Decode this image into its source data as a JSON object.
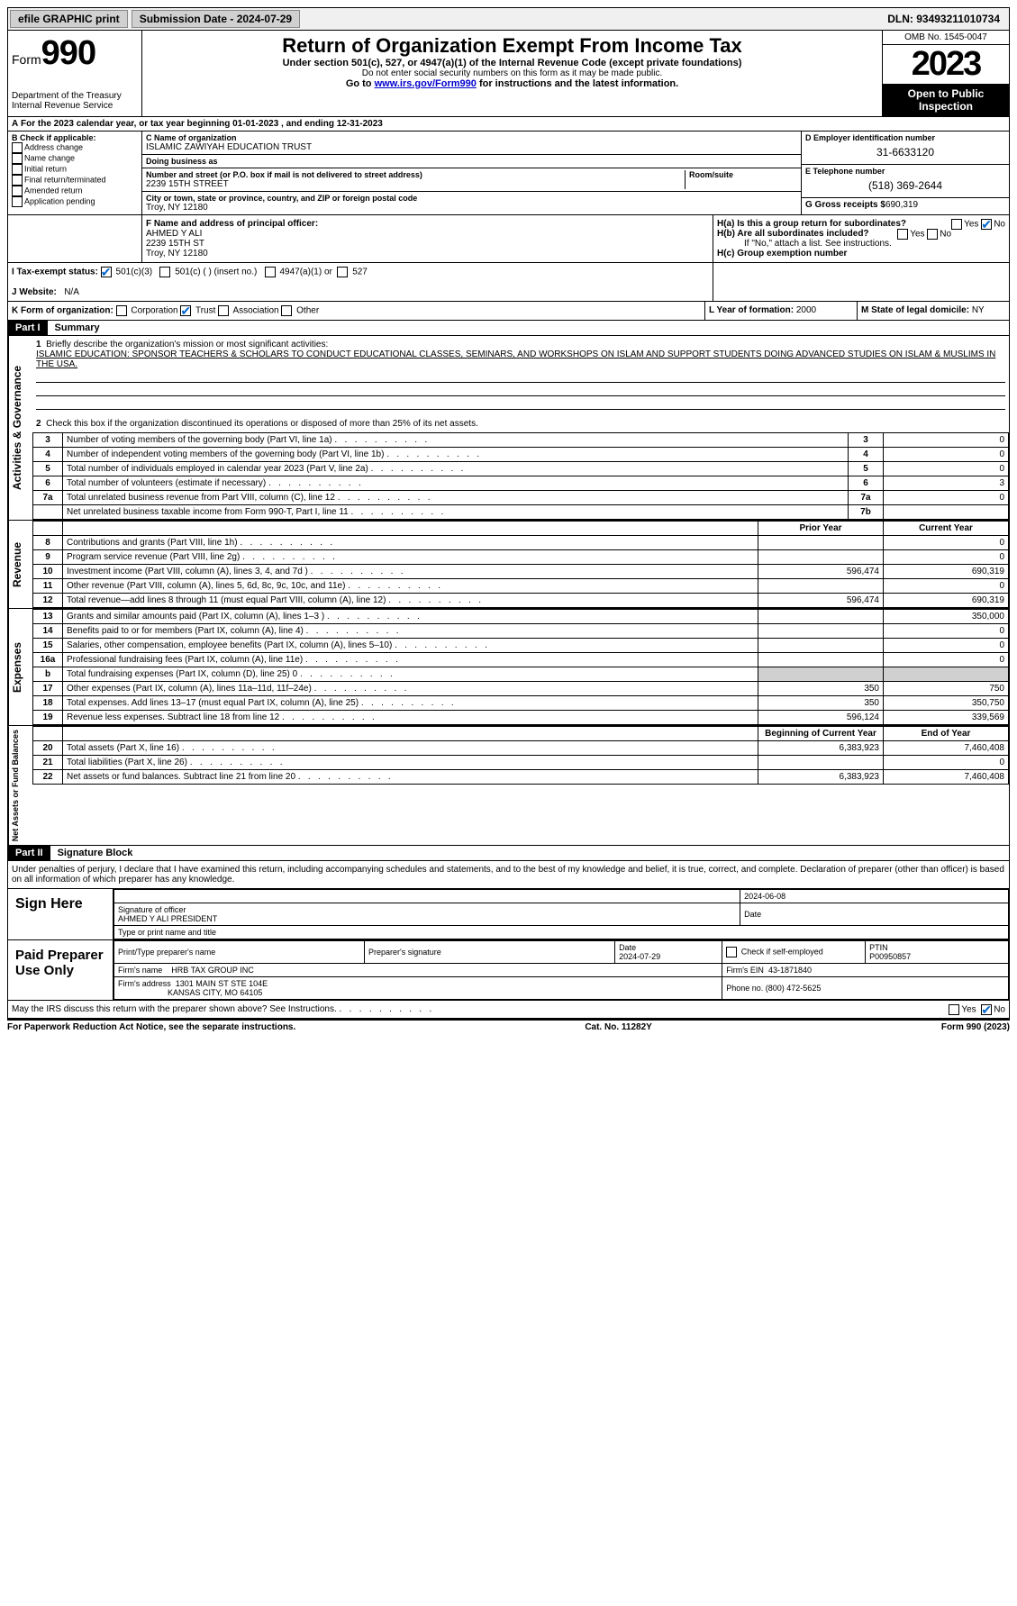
{
  "topbar": {
    "efile": "efile GRAPHIC print",
    "submission_label": "Submission Date - 2024-07-29",
    "dln": "DLN: 93493211010734"
  },
  "header": {
    "form_label": "Form",
    "form_number": "990",
    "dept": "Department of the Treasury Internal Revenue Service",
    "title": "Return of Organization Exempt From Income Tax",
    "subtitle": "Under section 501(c), 527, or 4947(a)(1) of the Internal Revenue Code (except private foundations)",
    "note1": "Do not enter social security numbers on this form as it may be made public.",
    "note2_pre": "Go to ",
    "note2_link": "www.irs.gov/Form990",
    "note2_post": " for instructions and the latest information.",
    "omb": "OMB No. 1545-0047",
    "year": "2023",
    "open": "Open to Public Inspection"
  },
  "line_a": "For the 2023 calendar year, or tax year beginning 01-01-2023   , and ending 12-31-2023",
  "box_b": {
    "label": "B Check if applicable:",
    "opts": [
      "Address change",
      "Name change",
      "Initial return",
      "Final return/terminated",
      "Amended return",
      "Application pending"
    ]
  },
  "box_c": {
    "name_label": "C Name of organization",
    "name": "ISLAMIC ZAWIYAH EDUCATION TRUST",
    "dba_label": "Doing business as",
    "street_label": "Number and street (or P.O. box if mail is not delivered to street address)",
    "room_label": "Room/suite",
    "street": "2239 15TH STREET",
    "city_label": "City or town, state or province, country, and ZIP or foreign postal code",
    "city": "Troy, NY  12180"
  },
  "box_d": {
    "label": "D Employer identification number",
    "value": "31-6633120"
  },
  "box_e": {
    "label": "E Telephone number",
    "value": "(518) 369-2644"
  },
  "box_g": {
    "label": "G Gross receipts $",
    "value": "690,319"
  },
  "box_f": {
    "label": "F  Name and address of principal officer:",
    "name": "AHMED Y ALI",
    "street": "2239 15TH ST",
    "city": "Troy, NY  12180"
  },
  "box_h": {
    "ha": "H(a)  Is this a group return for subordinates?",
    "hb": "H(b)  Are all subordinates included?",
    "hb_note": "If \"No,\" attach a list. See instructions.",
    "hc": "H(c)  Group exemption number"
  },
  "line_i": {
    "label": "I    Tax-exempt status:",
    "o1": "501(c)(3)",
    "o2": "501(c) (  ) (insert no.)",
    "o3": "4947(a)(1) or",
    "o4": "527"
  },
  "line_j": {
    "label": "J    Website:",
    "value": "N/A"
  },
  "line_k": {
    "label": "K Form of organization:",
    "opts": [
      "Corporation",
      "Trust",
      "Association",
      "Other"
    ]
  },
  "line_l": {
    "label": "L Year of formation:",
    "value": "2000"
  },
  "line_m": {
    "label": "M State of legal domicile:",
    "value": "NY"
  },
  "part1": {
    "header": "Part I",
    "title": "Summary"
  },
  "summary": {
    "line1_label": "Briefly describe the organization's mission or most significant activities:",
    "line1_text": "ISLAMIC EDUCATION: SPONSOR TEACHERS & SCHOLARS TO CONDUCT EDUCATIONAL CLASSES, SEMINARS, AND WORKSHOPS ON ISLAM AND SUPPORT STUDENTS DOING ADVANCED STUDIES ON ISLAM & MUSLIMS IN THE USA.",
    "line2": "Check this box      if the organization discontinued its operations or disposed of more than 25% of its net assets.",
    "gov": {
      "vert": "Activities & Governance",
      "rows": [
        {
          "n": "3",
          "t": "Number of voting members of the governing body (Part VI, line 1a)",
          "box": "3",
          "v": "0"
        },
        {
          "n": "4",
          "t": "Number of independent voting members of the governing body (Part VI, line 1b)",
          "box": "4",
          "v": "0"
        },
        {
          "n": "5",
          "t": "Total number of individuals employed in calendar year 2023 (Part V, line 2a)",
          "box": "5",
          "v": "0"
        },
        {
          "n": "6",
          "t": "Total number of volunteers (estimate if necessary)",
          "box": "6",
          "v": "3"
        },
        {
          "n": "7a",
          "t": "Total unrelated business revenue from Part VIII, column (C), line 12",
          "box": "7a",
          "v": "0"
        },
        {
          "n": "",
          "t": "Net unrelated business taxable income from Form 990-T, Part I, line 11",
          "box": "7b",
          "v": ""
        }
      ]
    },
    "rev": {
      "vert": "Revenue",
      "hdr_prior": "Prior Year",
      "hdr_current": "Current Year",
      "rows": [
        {
          "n": "8",
          "t": "Contributions and grants (Part VIII, line 1h)",
          "p": "",
          "c": "0"
        },
        {
          "n": "9",
          "t": "Program service revenue (Part VIII, line 2g)",
          "p": "",
          "c": "0"
        },
        {
          "n": "10",
          "t": "Investment income (Part VIII, column (A), lines 3, 4, and 7d )",
          "p": "596,474",
          "c": "690,319"
        },
        {
          "n": "11",
          "t": "Other revenue (Part VIII, column (A), lines 5, 6d, 8c, 9c, 10c, and 11e)",
          "p": "",
          "c": "0"
        },
        {
          "n": "12",
          "t": "Total revenue—add lines 8 through 11 (must equal Part VIII, column (A), line 12)",
          "p": "596,474",
          "c": "690,319"
        }
      ]
    },
    "exp": {
      "vert": "Expenses",
      "rows": [
        {
          "n": "13",
          "t": "Grants and similar amounts paid (Part IX, column (A), lines 1–3 )",
          "p": "",
          "c": "350,000"
        },
        {
          "n": "14",
          "t": "Benefits paid to or for members (Part IX, column (A), line 4)",
          "p": "",
          "c": "0"
        },
        {
          "n": "15",
          "t": "Salaries, other compensation, employee benefits (Part IX, column (A), lines 5–10)",
          "p": "",
          "c": "0"
        },
        {
          "n": "16a",
          "t": "Professional fundraising fees (Part IX, column (A), line 11e)",
          "p": "",
          "c": "0"
        },
        {
          "n": "b",
          "t": "Total fundraising expenses (Part IX, column (D), line 25) 0",
          "p": "grey",
          "c": "grey"
        },
        {
          "n": "17",
          "t": "Other expenses (Part IX, column (A), lines 11a–11d, 11f–24e)",
          "p": "350",
          "c": "750"
        },
        {
          "n": "18",
          "t": "Total expenses. Add lines 13–17 (must equal Part IX, column (A), line 25)",
          "p": "350",
          "c": "350,750"
        },
        {
          "n": "19",
          "t": "Revenue less expenses. Subtract line 18 from line 12",
          "p": "596,124",
          "c": "339,569"
        }
      ]
    },
    "net": {
      "vert": "Net Assets or Fund Balances",
      "hdr_begin": "Beginning of Current Year",
      "hdr_end": "End of Year",
      "rows": [
        {
          "n": "20",
          "t": "Total assets (Part X, line 16)",
          "p": "6,383,923",
          "c": "7,460,408"
        },
        {
          "n": "21",
          "t": "Total liabilities (Part X, line 26)",
          "p": "",
          "c": "0"
        },
        {
          "n": "22",
          "t": "Net assets or fund balances. Subtract line 21 from line 20",
          "p": "6,383,923",
          "c": "7,460,408"
        }
      ]
    }
  },
  "part2": {
    "header": "Part II",
    "title": "Signature Block",
    "declaration": "Under penalties of perjury, I declare that I have examined this return, including accompanying schedules and statements, and to the best of my knowledge and belief, it is true, correct, and complete. Declaration of preparer (other than officer) is based on all information of which preparer has any knowledge."
  },
  "sign": {
    "left": "Sign Here",
    "date": "2024-06-08",
    "sig_label": "Signature of officer",
    "name": "AHMED Y ALI PRESIDENT",
    "type_label": "Type or print name and title",
    "date_label": "Date"
  },
  "preparer": {
    "left": "Paid Preparer Use Only",
    "name_label": "Print/Type preparer's name",
    "sig_label": "Preparer's signature",
    "date_label": "Date",
    "date": "2024-07-29",
    "check_label": "Check       if self-employed",
    "ptin_label": "PTIN",
    "ptin": "P00950857",
    "firm_name_label": "Firm's name",
    "firm_name": "HRB TAX GROUP INC",
    "firm_ein_label": "Firm's EIN",
    "firm_ein": "43-1871840",
    "firm_addr_label": "Firm's address",
    "firm_addr1": "1301 MAIN ST STE 104E",
    "firm_addr2": "KANSAS CITY, MO  64105",
    "phone_label": "Phone no.",
    "phone": "(800) 472-5625"
  },
  "discuss": "May the IRS discuss this return with the preparer shown above? See Instructions.",
  "footer": {
    "left": "For Paperwork Reduction Act Notice, see the separate instructions.",
    "center": "Cat. No. 11282Y",
    "right": "Form 990 (2023)"
  },
  "yes": "Yes",
  "no": "No"
}
